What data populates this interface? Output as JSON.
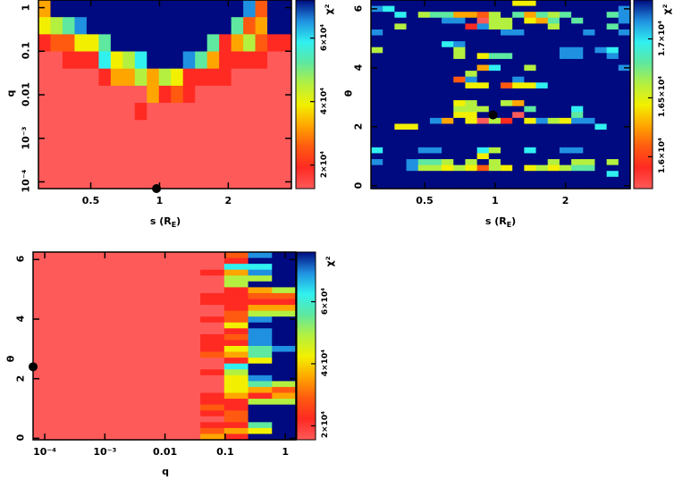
{
  "colors": {
    "levels": [
      "#ff5a5a",
      "#ff2a22",
      "#ff5a10",
      "#ffa500",
      "#f2f000",
      "#b4f040",
      "#5ee8a0",
      "#30f0f0",
      "#2090e0",
      "#000a80"
    ],
    "marker": "#000000"
  },
  "chart_data": [
    {
      "type": "heatmap",
      "panel": "top-left",
      "xlabel_parts": [
        "s (R",
        "E",
        ")"
      ],
      "ylabel": "q",
      "colorbar_label": "χ²",
      "xscale": "log",
      "yscale": "log",
      "xlim": [
        0.295,
        3.78
      ],
      "ylim": [
        7e-05,
        1.5
      ],
      "xticks": [
        {
          "v": 0.5,
          "t": "0.5"
        },
        {
          "v": 1,
          "t": "1"
        },
        {
          "v": 2,
          "t": "2"
        }
      ],
      "yticks": [
        {
          "v": 0.0001,
          "t": "10⁻⁴"
        },
        {
          "v": 0.001,
          "t": "10⁻³"
        },
        {
          "v": 0.01,
          "t": "0.01"
        },
        {
          "v": 0.1,
          "t": "0.1"
        },
        {
          "v": 1,
          "t": "1"
        }
      ],
      "colorbar_range": [
        12600,
        72000
      ],
      "colorbar_ticks": [
        {
          "v": 20000,
          "t": "2×10⁴"
        },
        {
          "v": 40000,
          "t": "4×10⁴"
        },
        {
          "v": 60000,
          "t": "6×10⁴"
        }
      ],
      "cell_levels_top_to_bottom": [
        "399999999999999998299",
        "456899999999999962399",
        "122446999999996135211",
        "001117457999863111100",
        "000001335354111100000",
        "000000000312100000000",
        "000000001000000000000",
        "000000000000000000000",
        "000000000000000000000",
        "000000000000000000000",
        "000000000000000000000"
      ],
      "best_fit_point": {
        "x": 0.97,
        "y": 7e-05
      }
    },
    {
      "type": "heatmap",
      "panel": "top-right",
      "xlabel_parts": [
        "s (R",
        "E",
        ")"
      ],
      "ylabel": "θ",
      "colorbar_label": "χ²",
      "xscale": "log",
      "yscale": "linear",
      "xlim": [
        0.295,
        3.78
      ],
      "ylim": [
        -0.1,
        6.3
      ],
      "xticks": [
        {
          "v": 0.5,
          "t": "0.5"
        },
        {
          "v": 1,
          "t": "1"
        },
        {
          "v": 2,
          "t": "2"
        }
      ],
      "yticks": [
        {
          "v": 0,
          "t": "0"
        },
        {
          "v": 2,
          "t": "2"
        },
        {
          "v": 4,
          "t": "4"
        },
        {
          "v": 6,
          "t": "6"
        }
      ],
      "colorbar_range": [
        15730,
        17330
      ],
      "colorbar_ticks": [
        {
          "v": 16000,
          "t": "1.6×10⁴"
        },
        {
          "v": 16500,
          "t": "1.65×10⁴"
        },
        {
          "v": 17000,
          "t": "1.7×10⁴"
        }
      ],
      "cell_levels_top_to_bottom": [
        "9999999999994499999999",
        "8799999999999999999998",
        "9979566332596365699968",
        "9999998890559436969998",
        "9959999918559995999969",
        "8999999999988999998998",
        "9999999999999999999999",
        "9999997899999999999999",
        "5999999599999999889879",
        "9999999594669999889989",
        "9999999999999999999999",
        "9999999993799599999998",
        "9999999959999999999999",
        "9999999289998999999999",
        "9999999944924479999999",
        "9999999999999999999999",
        "9999999999999999999999",
        "9999999459953999999999",
        "9999999555999699979999",
        "9999999449990999969999",
        "9999983940519485488999",
        "9944999999999999999799",
        "9999999999999999999999",
        "9999999999999999999999",
        "9999999999999999999999",
        "7999889997599799889999",
        "9999999994999999999999",
        "8998665959599995955959",
        "9998554542549454566999",
        "9999999999999999999979",
        "9999999999999999999999",
        "9999999999999999999999"
      ],
      "best_fit_point": {
        "x": 0.98,
        "y": 2.4
      }
    },
    {
      "type": "heatmap",
      "panel": "bottom-left",
      "xlabel": "q",
      "ylabel": "θ",
      "colorbar_label": "χ²",
      "xscale": "log",
      "yscale": "linear",
      "xlim": [
        6.4e-05,
        1.5
      ],
      "ylim": [
        -0.05,
        6.25
      ],
      "xticks": [
        {
          "v": 0.0001,
          "t": "10⁻⁴"
        },
        {
          "v": 0.001,
          "t": "10⁻³"
        },
        {
          "v": 0.01,
          "t": "0.01"
        },
        {
          "v": 0.1,
          "t": "0.1"
        },
        {
          "v": 1,
          "t": "1"
        }
      ],
      "yticks": [
        {
          "v": 0,
          "t": "0"
        },
        {
          "v": 2,
          "t": "2"
        },
        {
          "v": 4,
          "t": "4"
        },
        {
          "v": 6,
          "t": "6"
        }
      ],
      "colorbar_range": [
        15500,
        76000
      ],
      "colorbar_ticks": [
        {
          "v": 20000,
          "t": "2×10⁴"
        },
        {
          "v": 40000,
          "t": "4×10⁴"
        },
        {
          "v": 60000,
          "t": "6×10⁴"
        }
      ],
      "cell_levels_top_to_bottom": [
        "00000000289",
        "00000000199",
        "00000000779",
        "00000001389",
        "00000000559",
        "00000000599",
        "00000000135",
        "00000001122",
        "00000001111",
        "00000000133",
        "00000000255",
        "00000001289",
        "00000000499",
        "00000000189",
        "00000001289",
        "00000001189",
        "00000001468",
        "00000002369",
        "00000000149",
        "00000000799",
        "00000001599",
        "00000000489",
        "00000000465",
        "00000000432",
        "00000001313",
        "00000001155",
        "00000002199",
        "00000001299",
        "00000000299",
        "00000001169",
        "00000002349",
        "00000003199"
      ],
      "best_fit_point": {
        "x": 6.4e-05,
        "y": 2.4
      }
    }
  ]
}
